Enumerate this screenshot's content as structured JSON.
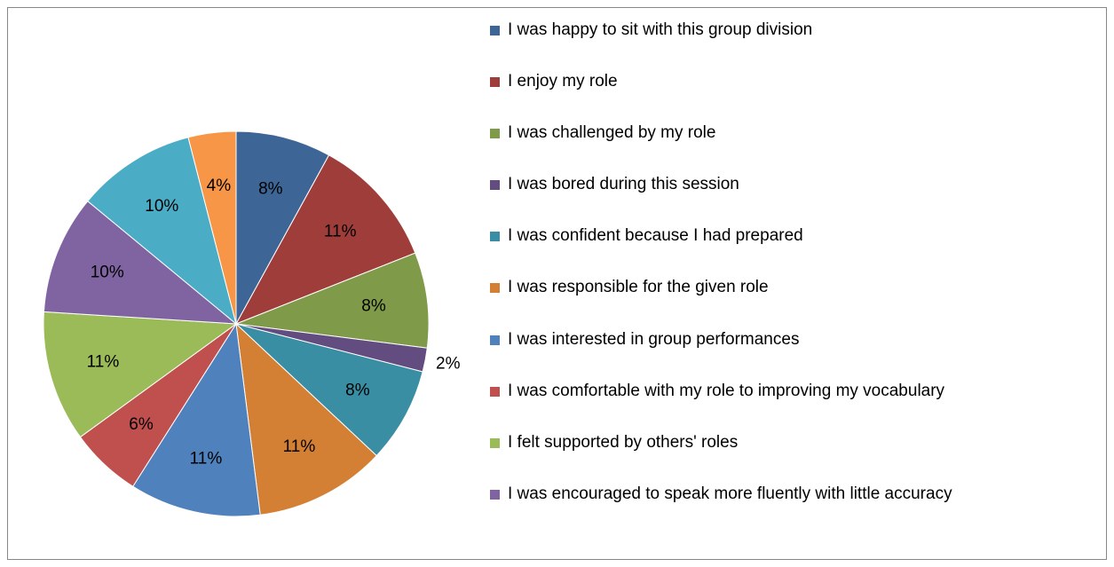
{
  "chart_data": {
    "type": "pie",
    "categories": [
      "I was happy to sit with this group division",
      "I enjoy my role",
      "I was challenged by my role",
      "I was bored during this session",
      "I was confident because I had prepared",
      "I was responsible for the given role",
      "I was interested in group performances",
      "I was comfortable with my role to improving my vocabulary",
      "I felt supported by others' roles",
      "I was encouraged to speak more fluently with little accuracy",
      null,
      null
    ],
    "values": [
      8,
      11,
      8,
      2,
      8,
      11,
      11,
      6,
      11,
      10,
      10,
      4
    ],
    "value_labels": [
      "8%",
      "11%",
      "8%",
      "2%",
      "8%",
      "11%",
      "11%",
      "6%",
      "11%",
      "10%",
      "10%",
      "4%"
    ],
    "colors": [
      "#3D6596",
      "#9E3D3A",
      "#7F9A48",
      "#634C7F",
      "#3A8EA3",
      "#D37F34",
      "#4F81BD",
      "#C0504D",
      "#9BBB59",
      "#8064A2",
      "#4BACC6",
      "#F79646"
    ],
    "legend": "right"
  }
}
